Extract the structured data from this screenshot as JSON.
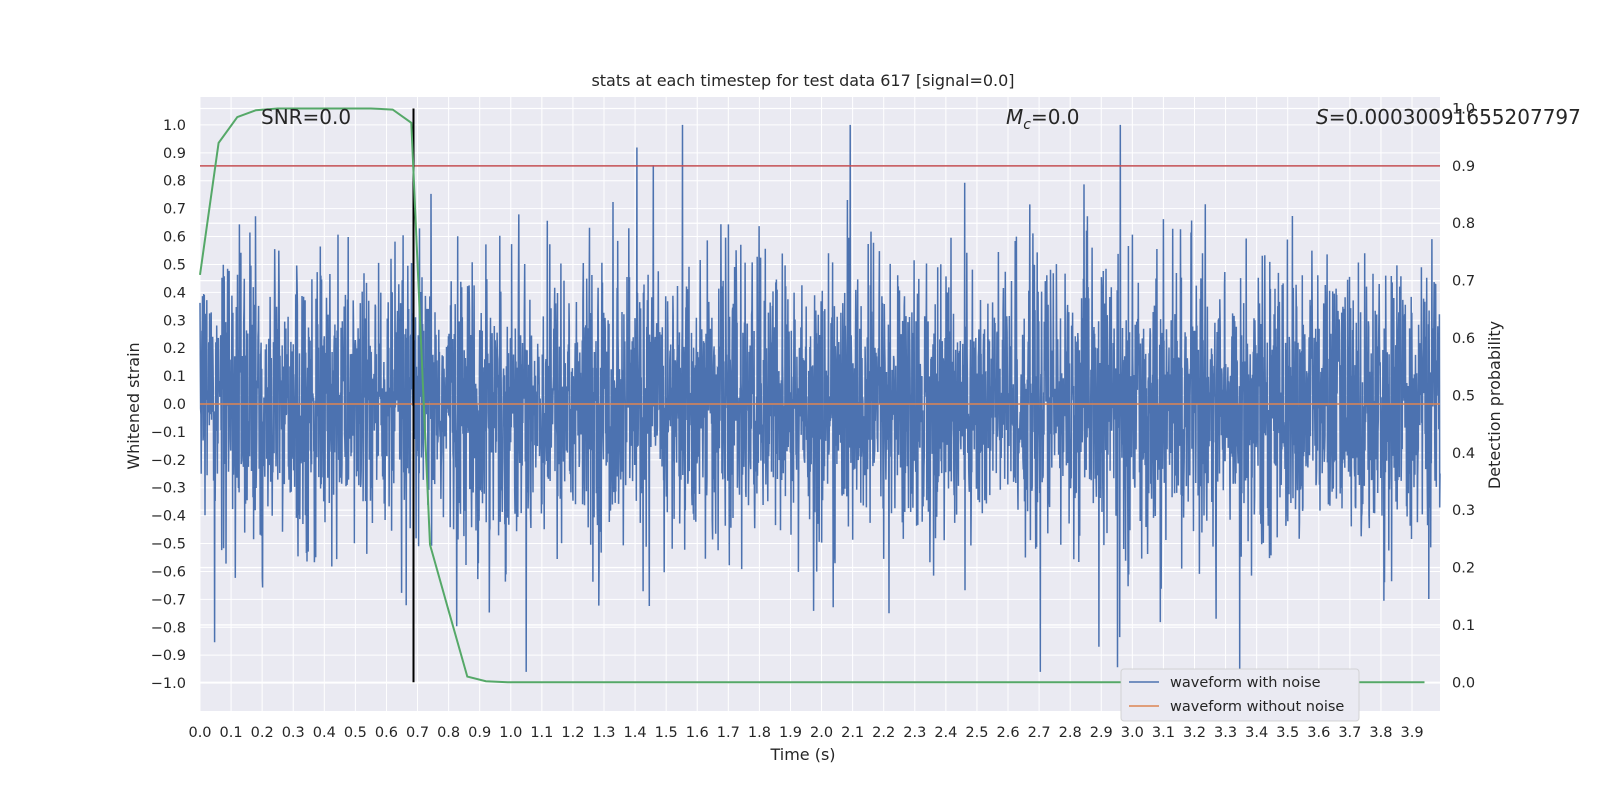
{
  "chart_data": {
    "type": "line",
    "title": "stats at each timestep for test data 617 [signal=0.0]",
    "xlabel": "Time (s)",
    "ylabel": "Whitened strain",
    "y2label": "Detection probability",
    "xlim": [
      0.0,
      3.99
    ],
    "ylim": [
      -1.1,
      1.1
    ],
    "y2lim": [
      -0.05,
      1.02
    ],
    "x_ticks": [
      "0.0",
      "0.1",
      "0.2",
      "0.3",
      "0.4",
      "0.5",
      "0.6",
      "0.7",
      "0.8",
      "0.9",
      "1.0",
      "1.1",
      "1.2",
      "1.3",
      "1.4",
      "1.5",
      "1.6",
      "1.7",
      "1.8",
      "1.9",
      "2.0",
      "2.1",
      "2.2",
      "2.3",
      "2.4",
      "2.5",
      "2.6",
      "2.7",
      "2.8",
      "2.9",
      "3.0",
      "3.1",
      "3.2",
      "3.3",
      "3.4",
      "3.5",
      "3.6",
      "3.7",
      "3.8",
      "3.9"
    ],
    "y_ticks": [
      "1.0",
      "0.9",
      "0.8",
      "0.7",
      "0.6",
      "0.5",
      "0.4",
      "0.3",
      "0.2",
      "0.1",
      "0.0",
      "-0.1",
      "-0.2",
      "-0.3",
      "-0.4",
      "-0.5",
      "-0.6",
      "-0.7",
      "-0.8",
      "-0.9",
      "-1.0"
    ],
    "y2_ticks": [
      "1.0",
      "0.9",
      "0.8",
      "0.7",
      "0.6",
      "0.5",
      "0.4",
      "0.3",
      "0.2",
      "0.1",
      "0.0"
    ],
    "annotations": {
      "snr": "SNR=0.0",
      "mc_symbol": "M",
      "mc_sub": "c",
      "mc_value": "=0.0",
      "s_symbol": "S",
      "s_value": "=0.00030091655207797"
    },
    "series": [
      {
        "name": "waveform with noise",
        "color": "#4c72b0",
        "axis": "left",
        "description": "whitened noisy strain, amplitude roughly within ±1.0"
      },
      {
        "name": "waveform without noise",
        "color": "#dd8452",
        "axis": "left",
        "values_constant": 0.0
      },
      {
        "name": "",
        "color": "#55a868",
        "axis": "right",
        "x": [
          0.0,
          0.06,
          0.12,
          0.18,
          0.25,
          0.31,
          0.37,
          0.43,
          0.49,
          0.55,
          0.62,
          0.68,
          0.74,
          0.8,
          0.86,
          0.92,
          0.99,
          1.1,
          1.5,
          2.0,
          2.5,
          3.0,
          3.5,
          3.94
        ],
        "y": [
          0.71,
          0.94,
          0.985,
          0.997,
          1.0,
          1.0,
          1.0,
          1.0,
          1.0,
          1.0,
          0.998,
          0.975,
          0.24,
          0.125,
          0.01,
          0.002,
          0.0,
          0.0,
          0.0,
          0.0,
          0.0,
          0.0,
          0.0,
          0.0
        ]
      }
    ],
    "hlines": [
      {
        "y2": 0.9,
        "color": "#c44e52"
      }
    ],
    "vlines": [
      {
        "x": 0.687,
        "y2_range": [
          0.0,
          1.0
        ],
        "color": "#000000"
      }
    ],
    "legend": {
      "placement": "lower right",
      "entries": [
        "waveform with noise",
        "waveform without noise"
      ]
    },
    "grid": true
  }
}
